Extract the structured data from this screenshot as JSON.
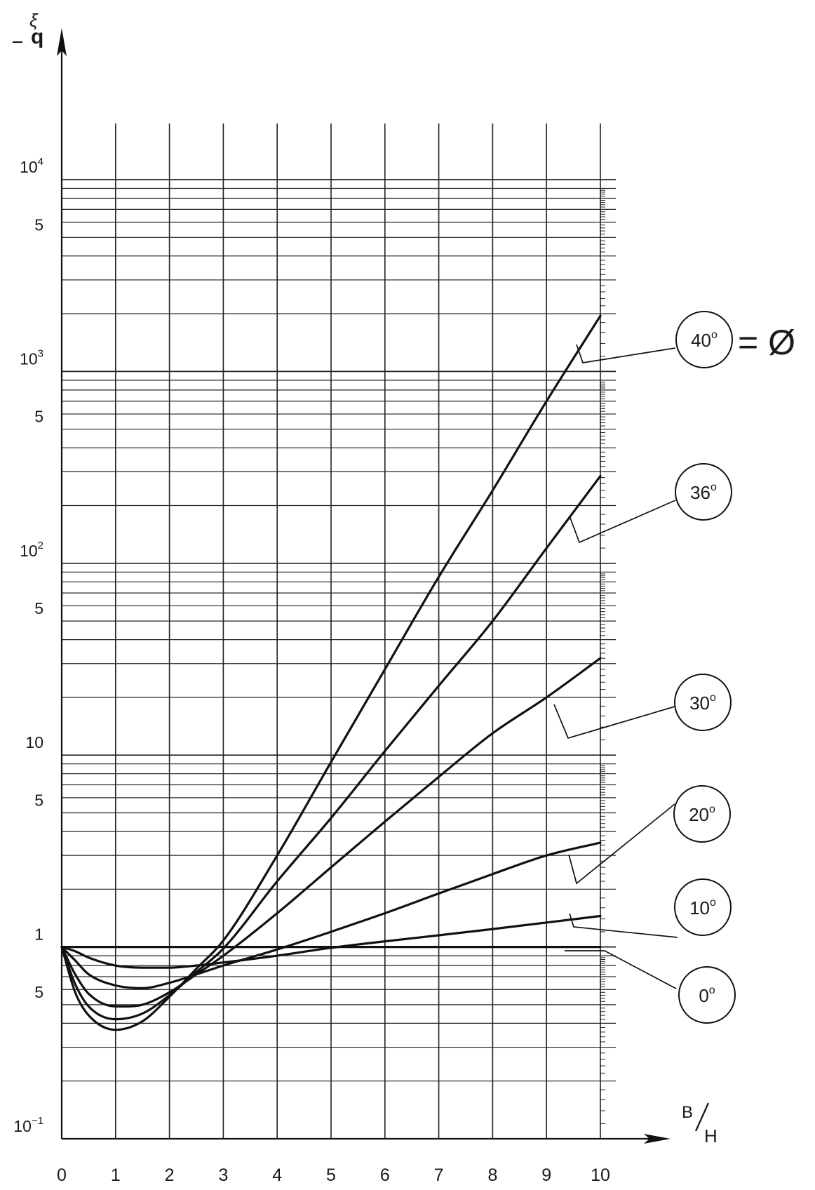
{
  "chart_data": {
    "type": "line",
    "title": "",
    "xlabel": "B/H",
    "xlabel_parts": {
      "numerator": "B",
      "denominator": "H"
    },
    "ylabel": "ξq",
    "ylabel_parts": {
      "main": "ξ",
      "sub": "q"
    },
    "xlim": [
      0,
      10
    ],
    "ylim": [
      0.1,
      10000
    ],
    "yscale": "log",
    "grid": true,
    "x_ticks": [
      0,
      1,
      2,
      3,
      4,
      5,
      6,
      7,
      8,
      9,
      10
    ],
    "x_tick_labels": [
      "0",
      "1",
      "2",
      "3",
      "4",
      "5",
      "6",
      "7",
      "8",
      "9",
      "10"
    ],
    "y_tick_labels": [
      {
        "value": 10000,
        "base": "10",
        "exp": "4"
      },
      {
        "value": 5000,
        "base": "5",
        "exp": ""
      },
      {
        "value": 1000,
        "base": "10",
        "exp": "3"
      },
      {
        "value": 500,
        "base": "5",
        "exp": ""
      },
      {
        "value": 100,
        "base": "10",
        "exp": "2"
      },
      {
        "value": 50,
        "base": "5",
        "exp": ""
      },
      {
        "value": 10,
        "base": "10",
        "exp": ""
      },
      {
        "value": 5,
        "base": "5",
        "exp": ""
      },
      {
        "value": 1,
        "base": "1",
        "exp": ""
      },
      {
        "value": 0.5,
        "base": "5",
        "exp": ""
      },
      {
        "value": 0.1,
        "base": "10",
        "exp": "−1"
      }
    ],
    "phi_symbol": "= Ø",
    "series": [
      {
        "name": "0°",
        "label_num": "0",
        "x": [
          0,
          1,
          2,
          3,
          4,
          5,
          6,
          7,
          8,
          9,
          10
        ],
        "y": [
          1,
          1,
          1,
          1,
          1,
          1,
          1,
          1,
          1,
          1,
          1
        ]
      },
      {
        "name": "10°",
        "label_num": "10",
        "x": [
          0,
          0.25,
          0.5,
          1,
          1.5,
          2,
          2.5,
          3,
          4,
          5,
          6,
          7,
          8,
          9,
          10
        ],
        "y": [
          1,
          0.95,
          0.88,
          0.8,
          0.78,
          0.78,
          0.8,
          0.83,
          0.9,
          0.99,
          1.07,
          1.15,
          1.24,
          1.34,
          1.45
        ]
      },
      {
        "name": "20°",
        "label_num": "20",
        "x": [
          0,
          0.25,
          0.5,
          1,
          1.5,
          2,
          2.5,
          3,
          4,
          5,
          6,
          7,
          8,
          9,
          10
        ],
        "y": [
          1,
          0.85,
          0.72,
          0.63,
          0.61,
          0.65,
          0.72,
          0.8,
          0.97,
          1.2,
          1.5,
          1.9,
          2.4,
          3.0,
          3.5
        ]
      },
      {
        "name": "30°",
        "label_num": "30",
        "x": [
          0,
          0.25,
          0.5,
          1,
          1.5,
          2,
          2.5,
          3,
          4,
          5,
          6,
          7,
          8,
          9,
          10
        ],
        "y": [
          1,
          0.72,
          0.57,
          0.49,
          0.5,
          0.58,
          0.72,
          0.9,
          1.5,
          2.6,
          4.5,
          7.7,
          13,
          20,
          32
        ]
      },
      {
        "name": "36°",
        "label_num": "36",
        "x": [
          0,
          0.25,
          0.5,
          1,
          1.5,
          2,
          2.5,
          3,
          4,
          5,
          6,
          7,
          8,
          9,
          10
        ],
        "y": [
          1,
          0.64,
          0.49,
          0.42,
          0.45,
          0.56,
          0.74,
          0.98,
          2.2,
          4.7,
          10.5,
          23,
          50,
          120,
          285
        ]
      },
      {
        "name": "40°",
        "label_num": "40",
        "x": [
          0,
          0.25,
          0.5,
          1,
          1.5,
          2,
          2.5,
          3,
          4,
          5,
          6,
          7,
          8,
          9,
          10
        ],
        "y": [
          1,
          0.58,
          0.44,
          0.37,
          0.41,
          0.55,
          0.77,
          1.08,
          3.0,
          9.2,
          28,
          85,
          240,
          700,
          1950
        ]
      }
    ]
  }
}
